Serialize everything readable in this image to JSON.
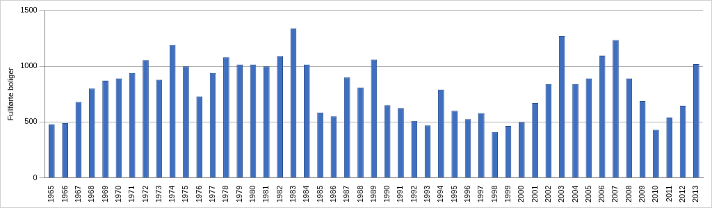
{
  "chart_data": {
    "type": "bar",
    "y_label": "Fullførte boliger",
    "categories": [
      "1965",
      "1966",
      "1967",
      "1968",
      "1969",
      "1970",
      "1971",
      "1972",
      "1973",
      "1974",
      "1975",
      "1976",
      "1977",
      "1978",
      "1979",
      "1980",
      "1981",
      "1982",
      "1983",
      "1984",
      "1985",
      "1986",
      "1987",
      "1988",
      "1989",
      "1990",
      "1991",
      "1992",
      "1993",
      "1994",
      "1995",
      "1996",
      "1997",
      "1998",
      "1999",
      "2000",
      "2001",
      "2002",
      "2003",
      "2004",
      "2005",
      "2006",
      "2007",
      "2008",
      "2009",
      "2010",
      "2011",
      "2012",
      "2013"
    ],
    "values": [
      480,
      490,
      680,
      800,
      870,
      890,
      940,
      1055,
      880,
      1190,
      1000,
      730,
      940,
      1080,
      1015,
      1015,
      1000,
      1090,
      1340,
      1015,
      585,
      550,
      900,
      810,
      1060,
      650,
      625,
      510,
      470,
      790,
      600,
      525,
      580,
      410,
      465,
      500,
      670,
      840,
      1270,
      840,
      890,
      1095,
      1235,
      890,
      690,
      430,
      540,
      645,
      1020
    ],
    "color": "#3f6fc0",
    "ylim": [
      0,
      1500
    ],
    "yticks": [
      0,
      500,
      1000,
      1500
    ],
    "grid": true
  }
}
